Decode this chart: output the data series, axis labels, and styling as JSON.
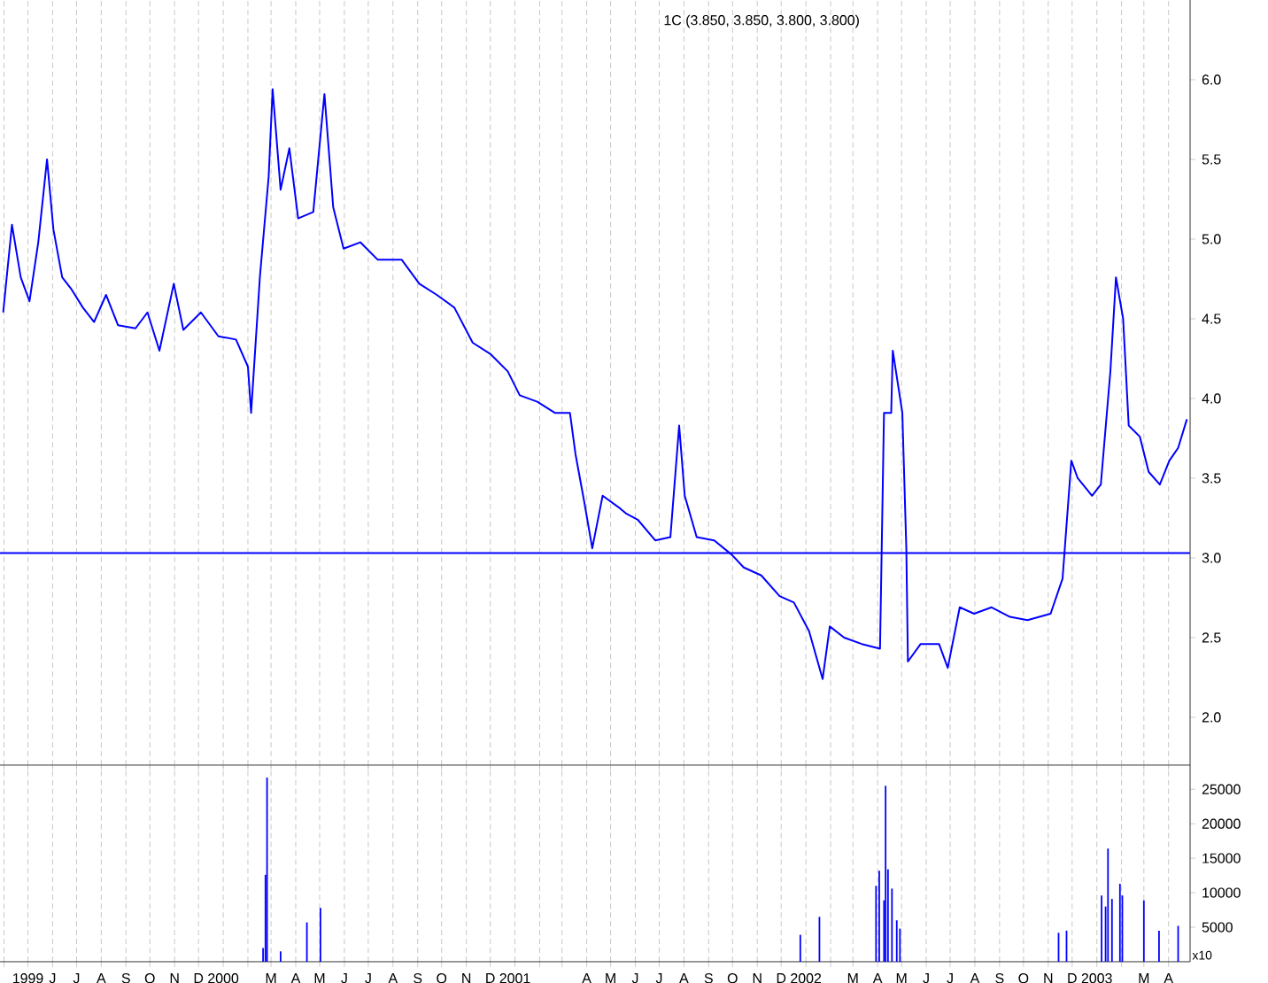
{
  "chart_data": [
    {
      "type": "line",
      "title": "1C (3.850, 3.850, 3.800, 3.800)",
      "color": "#0000ff",
      "grid": "x",
      "tick_labels": "y",
      "marker": "none",
      "x": [
        "1999-03-31",
        "1999-04-11",
        "1999-04-22",
        "1999-05-03",
        "1999-05-14",
        "1999-05-25",
        "1999-06-02",
        "1999-06-13",
        "1999-06-24",
        "1999-07-09",
        "1999-07-23",
        "1999-08-07",
        "1999-08-22",
        "1999-09-13",
        "1999-09-28",
        "1999-10-13",
        "1999-10-31",
        "1999-11-12",
        "1999-12-04",
        "1999-12-26",
        "2000-01-17",
        "2000-02-01",
        "2000-02-05",
        "2000-02-16",
        "2000-02-27",
        "2000-03-03",
        "2000-03-13",
        "2000-03-24",
        "2000-04-04",
        "2000-04-23",
        "2000-05-07",
        "2000-05-18",
        "2000-05-31",
        "2000-06-21",
        "2000-07-13",
        "2000-08-12",
        "2000-09-03",
        "2000-09-25",
        "2000-10-17",
        "2000-11-09",
        "2000-12-01",
        "2000-12-23",
        "2001-01-07",
        "2001-01-29",
        "2001-02-20",
        "2001-03-11",
        "2001-03-18",
        "2001-03-29",
        "2001-04-08",
        "2001-04-21",
        "2001-05-13",
        "2001-05-20",
        "2001-06-04",
        "2001-06-26",
        "2001-07-15",
        "2001-07-26",
        "2001-08-02",
        "2001-08-17",
        "2001-09-08",
        "2001-09-30",
        "2001-10-15",
        "2001-11-06",
        "2001-11-29",
        "2001-12-17",
        "2002-01-05",
        "2002-01-22",
        "2002-01-31",
        "2002-02-18",
        "2002-03-12",
        "2002-04-04",
        "2002-04-09",
        "2002-04-18",
        "2002-04-20",
        "2002-05-02",
        "2002-05-07",
        "2002-05-09",
        "2002-05-25",
        "2002-06-17",
        "2002-06-28",
        "2002-07-13",
        "2002-07-31",
        "2002-08-22",
        "2002-09-14",
        "2002-10-06",
        "2002-11-04",
        "2002-11-19",
        "2002-11-30",
        "2002-12-08",
        "2002-12-26",
        "2003-01-06",
        "2003-01-18",
        "2003-01-25",
        "2003-02-03",
        "2003-02-10",
        "2003-02-24",
        "2003-03-07",
        "2003-03-21",
        "2003-04-02",
        "2003-04-13",
        "2003-04-24"
      ],
      "values": [
        4.54,
        5.09,
        4.76,
        4.61,
        4.98,
        5.5,
        5.06,
        4.76,
        4.69,
        4.57,
        4.48,
        4.65,
        4.46,
        4.44,
        4.54,
        4.3,
        4.72,
        4.43,
        4.54,
        4.39,
        4.37,
        4.2,
        3.91,
        4.76,
        5.39,
        5.94,
        5.31,
        5.57,
        5.13,
        5.17,
        5.91,
        5.2,
        4.94,
        4.98,
        4.87,
        4.87,
        4.72,
        4.65,
        4.57,
        4.35,
        4.28,
        4.17,
        4.02,
        3.98,
        3.91,
        3.91,
        3.65,
        3.35,
        3.06,
        3.39,
        3.31,
        3.28,
        3.24,
        3.11,
        3.13,
        3.83,
        3.39,
        3.13,
        3.11,
        3.02,
        2.94,
        2.89,
        2.76,
        2.72,
        2.54,
        2.24,
        2.57,
        2.5,
        2.46,
        2.43,
        3.91,
        3.91,
        4.3,
        3.91,
        3.06,
        2.35,
        2.46,
        2.46,
        2.31,
        2.69,
        2.65,
        2.69,
        2.63,
        2.61,
        2.65,
        2.87,
        3.61,
        3.5,
        3.39,
        3.46,
        4.17,
        4.76,
        4.5,
        3.83,
        3.76,
        3.54,
        3.46,
        3.61,
        3.69,
        3.87
      ],
      "xlim": [
        "1999-03-27",
        "2003-04-28"
      ],
      "ylim": [
        1.7,
        6.5
      ],
      "xticks": [
        {
          "value": "1999-04-01",
          "label": null
        },
        {
          "value": "1999-05-01",
          "label": null
        },
        {
          "value": "1999-06-01",
          "label": null
        },
        {
          "value": "1999-07-01",
          "label": null
        },
        {
          "value": "1999-08-01",
          "label": null
        },
        {
          "value": "1999-09-01",
          "label": null
        },
        {
          "value": "1999-10-01",
          "label": null
        },
        {
          "value": "1999-11-01",
          "label": null
        },
        {
          "value": "1999-12-01",
          "label": null
        },
        {
          "value": "2000-01-01",
          "label": null
        },
        {
          "value": "2000-02-01",
          "label": null
        },
        {
          "value": "2000-03-01",
          "label": null
        },
        {
          "value": "2000-04-01",
          "label": null
        },
        {
          "value": "2000-05-01",
          "label": null
        },
        {
          "value": "2000-06-01",
          "label": null
        },
        {
          "value": "2000-07-01",
          "label": null
        },
        {
          "value": "2000-08-01",
          "label": null
        },
        {
          "value": "2000-09-01",
          "label": null
        },
        {
          "value": "2000-10-01",
          "label": null
        },
        {
          "value": "2000-11-01",
          "label": null
        },
        {
          "value": "2000-12-01",
          "label": null
        },
        {
          "value": "2001-01-01",
          "label": null
        },
        {
          "value": "2001-02-01",
          "label": null
        },
        {
          "value": "2001-03-01",
          "label": null
        },
        {
          "value": "2001-04-01",
          "label": null
        },
        {
          "value": "2001-05-01",
          "label": null
        },
        {
          "value": "2001-06-01",
          "label": null
        },
        {
          "value": "2001-07-01",
          "label": null
        },
        {
          "value": "2001-08-01",
          "label": null
        },
        {
          "value": "2001-09-01",
          "label": null
        },
        {
          "value": "2001-10-01",
          "label": null
        },
        {
          "value": "2001-11-01",
          "label": null
        },
        {
          "value": "2001-12-01",
          "label": null
        },
        {
          "value": "2002-01-01",
          "label": null
        },
        {
          "value": "2002-02-01",
          "label": null
        },
        {
          "value": "2002-03-01",
          "label": null
        },
        {
          "value": "2002-04-01",
          "label": null
        },
        {
          "value": "2002-05-01",
          "label": null
        },
        {
          "value": "2002-06-01",
          "label": null
        },
        {
          "value": "2002-07-01",
          "label": null
        },
        {
          "value": "2002-08-01",
          "label": null
        },
        {
          "value": "2002-09-01",
          "label": null
        },
        {
          "value": "2002-10-01",
          "label": null
        },
        {
          "value": "2002-11-01",
          "label": null
        },
        {
          "value": "2002-12-01",
          "label": null
        },
        {
          "value": "2003-01-01",
          "label": null
        },
        {
          "value": "2003-02-01",
          "label": null
        },
        {
          "value": "2003-03-01",
          "label": null
        },
        {
          "value": "2003-04-01",
          "label": null
        }
      ],
      "yticks": [
        {
          "value": 2.0,
          "label": "2.0"
        },
        {
          "value": 2.5,
          "label": "2.5"
        },
        {
          "value": 3.0,
          "label": "3.0"
        },
        {
          "value": 3.5,
          "label": "3.5"
        },
        {
          "value": 4.0,
          "label": "4.0"
        },
        {
          "value": 4.5,
          "label": "4.5"
        },
        {
          "value": 5.0,
          "label": "5.0"
        },
        {
          "value": 5.5,
          "label": "5.5"
        },
        {
          "value": 6.0,
          "label": "6.0"
        }
      ],
      "ref_lines": [
        {
          "axis": "y",
          "value": 3.03,
          "color": "#0000ff"
        }
      ]
    },
    {
      "type": "bar",
      "color": "#0000ff",
      "grid": "x",
      "annotations": [
        "x10"
      ],
      "x": [
        "2000-02-20",
        "2000-02-23",
        "2000-02-25",
        "2000-03-13",
        "2000-04-15",
        "2000-05-02",
        "2001-12-25",
        "2002-01-18",
        "2002-03-30",
        "2002-04-03",
        "2002-04-09",
        "2002-04-11",
        "2002-04-14",
        "2002-04-19",
        "2002-04-25",
        "2002-04-29",
        "2002-11-14",
        "2002-11-24",
        "2003-01-07",
        "2003-01-12",
        "2003-01-15",
        "2003-01-20",
        "2003-01-30",
        "2003-02-02",
        "2003-03-01",
        "2003-03-20",
        "2003-04-13"
      ],
      "values": [
        2000,
        12600,
        26700,
        1500,
        5700,
        7800,
        3900,
        6500,
        11000,
        13200,
        8900,
        25500,
        13400,
        10600,
        6000,
        4800,
        4200,
        4500,
        9600,
        8000,
        16400,
        9100,
        11300,
        9600,
        8900,
        4500,
        5200
      ],
      "xlim": [
        "1999-03-27",
        "2003-04-28"
      ],
      "ylim": [
        0,
        28500
      ],
      "xticks": [
        {
          "value": "1999-04-01",
          "label": null
        },
        {
          "value": "1999-05-01",
          "label": "1999"
        },
        {
          "value": "1999-06-01",
          "label": "J"
        },
        {
          "value": "1999-07-01",
          "label": "J"
        },
        {
          "value": "1999-08-01",
          "label": "A"
        },
        {
          "value": "1999-09-01",
          "label": "S"
        },
        {
          "value": "1999-10-01",
          "label": "O"
        },
        {
          "value": "1999-11-01",
          "label": "N"
        },
        {
          "value": "1999-12-01",
          "label": "D"
        },
        {
          "value": "2000-01-01",
          "label": "2000"
        },
        {
          "value": "2000-02-01",
          "label": null
        },
        {
          "value": "2000-03-01",
          "label": "M"
        },
        {
          "value": "2000-04-01",
          "label": "A"
        },
        {
          "value": "2000-05-01",
          "label": "M"
        },
        {
          "value": "2000-06-01",
          "label": "J"
        },
        {
          "value": "2000-07-01",
          "label": "J"
        },
        {
          "value": "2000-08-01",
          "label": "A"
        },
        {
          "value": "2000-09-01",
          "label": "S"
        },
        {
          "value": "2000-10-01",
          "label": "O"
        },
        {
          "value": "2000-11-01",
          "label": "N"
        },
        {
          "value": "2000-12-01",
          "label": "D"
        },
        {
          "value": "2001-01-01",
          "label": "2001"
        },
        {
          "value": "2001-02-01",
          "label": null
        },
        {
          "value": "2001-03-01",
          "label": null
        },
        {
          "value": "2001-04-01",
          "label": "A"
        },
        {
          "value": "2001-05-01",
          "label": "M"
        },
        {
          "value": "2001-06-01",
          "label": "J"
        },
        {
          "value": "2001-07-01",
          "label": "J"
        },
        {
          "value": "2001-08-01",
          "label": "A"
        },
        {
          "value": "2001-09-01",
          "label": "S"
        },
        {
          "value": "2001-10-01",
          "label": "O"
        },
        {
          "value": "2001-11-01",
          "label": "N"
        },
        {
          "value": "2001-12-01",
          "label": "D"
        },
        {
          "value": "2002-01-01",
          "label": "2002"
        },
        {
          "value": "2002-02-01",
          "label": null
        },
        {
          "value": "2002-03-01",
          "label": "M"
        },
        {
          "value": "2002-04-01",
          "label": "A"
        },
        {
          "value": "2002-05-01",
          "label": "M"
        },
        {
          "value": "2002-06-01",
          "label": "J"
        },
        {
          "value": "2002-07-01",
          "label": "J"
        },
        {
          "value": "2002-08-01",
          "label": "A"
        },
        {
          "value": "2002-09-01",
          "label": "S"
        },
        {
          "value": "2002-10-01",
          "label": "O"
        },
        {
          "value": "2002-11-01",
          "label": "N"
        },
        {
          "value": "2002-12-01",
          "label": "D"
        },
        {
          "value": "2003-01-01",
          "label": "2003"
        },
        {
          "value": "2003-02-01",
          "label": null
        },
        {
          "value": "2003-03-01",
          "label": "M"
        },
        {
          "value": "2003-04-01",
          "label": "A"
        }
      ],
      "yticks": [
        5000,
        10000,
        15000,
        20000,
        25000
      ]
    }
  ]
}
